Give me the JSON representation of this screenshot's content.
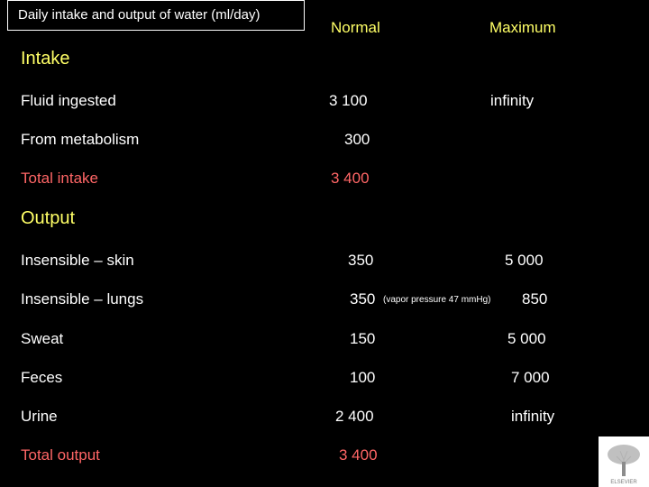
{
  "title": "Daily intake and output of water (ml/day)",
  "columns": {
    "normal": "Normal",
    "maximum": "Maximum"
  },
  "intake": {
    "heading": "Intake",
    "rows": [
      {
        "label": "Fluid ingested",
        "normal": "3 100",
        "maximum": "infinity"
      },
      {
        "label": "From metabolism",
        "normal": "300",
        "maximum": ""
      }
    ],
    "total": {
      "label": "Total intake",
      "normal": "3 400"
    }
  },
  "output": {
    "heading": "Output",
    "rows": [
      {
        "label": "Insensible – skin",
        "normal": "350",
        "note": "",
        "maximum": "5 000"
      },
      {
        "label": "Insensible – lungs",
        "normal": "350",
        "note": "(vapor pressure 47 mmHg)",
        "maximum": "850"
      },
      {
        "label": "Sweat",
        "normal": "150",
        "note": "",
        "maximum": "5 000"
      },
      {
        "label": "Feces",
        "normal": "100",
        "note": "",
        "maximum": "7 000"
      },
      {
        "label": "Urine",
        "normal": "2 400",
        "note": "",
        "maximum": "infinity"
      }
    ],
    "total": {
      "label": "Total output",
      "normal": "3 400"
    }
  },
  "logo": {
    "name": "publisher-logo",
    "text": "ELSEVIER"
  },
  "colors": {
    "background": "#000000",
    "text": "#ffffff",
    "header": "#ffff66",
    "total": "#ff6666"
  }
}
